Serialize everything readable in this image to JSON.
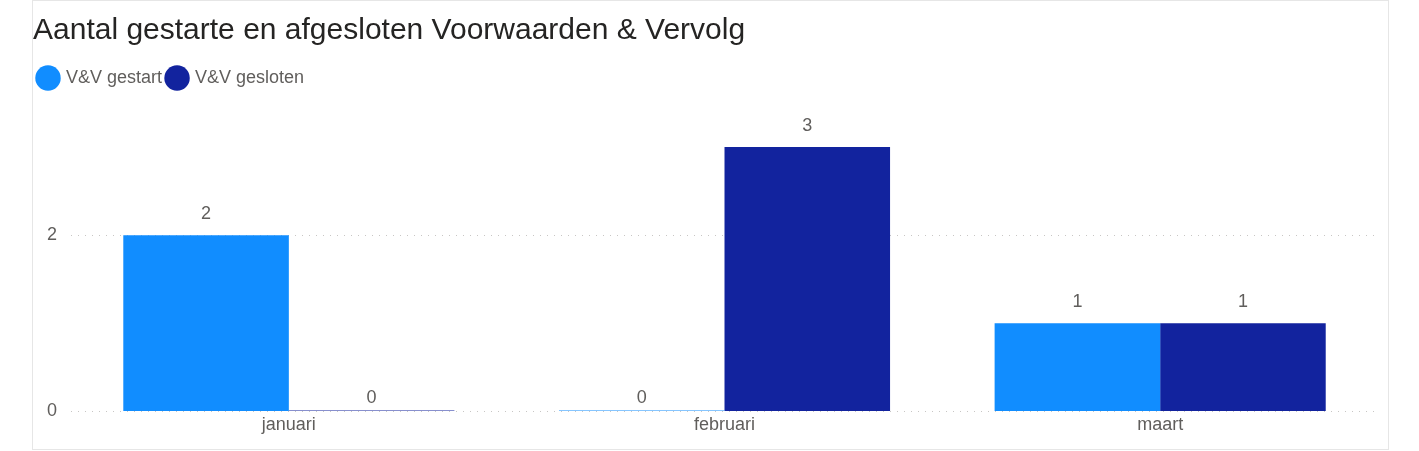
{
  "chart_data": {
    "type": "bar",
    "title": "Aantal gestarte en afgesloten Voorwaarden & Vervolg",
    "categories": [
      "januari",
      "februari",
      "maart"
    ],
    "series": [
      {
        "name": "V&V gestart",
        "color": "#118dff",
        "values": [
          2,
          0,
          1
        ]
      },
      {
        "name": "V&V gesloten",
        "color": "#12239e",
        "values": [
          0,
          3,
          1
        ]
      }
    ],
    "ylim": [
      0,
      3
    ],
    "yticks": [
      0,
      2
    ],
    "grid": "y",
    "legend": "top left",
    "data_labels": true
  }
}
